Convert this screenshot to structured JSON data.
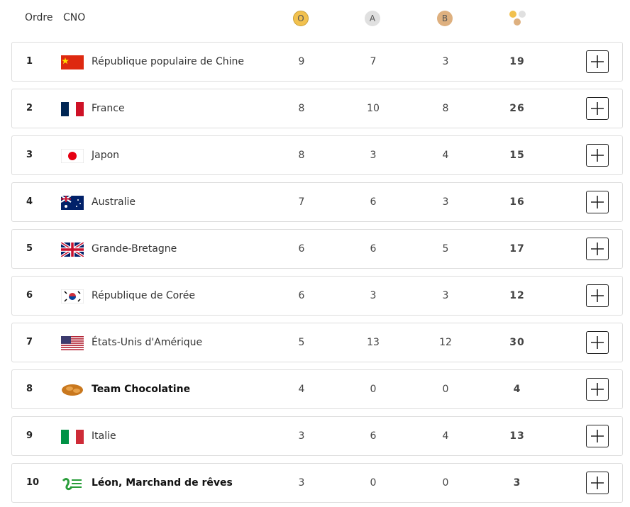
{
  "header": {
    "rank": "Ordre",
    "country": "CNO",
    "gold": "O",
    "silver": "A",
    "bronze": "B"
  },
  "table": {
    "rows": [
      [
        "1",
        "République populaire de Chine",
        9,
        7,
        3,
        19
      ],
      [
        "2",
        "France",
        8,
        10,
        8,
        26
      ],
      [
        "3",
        "Japon",
        8,
        3,
        4,
        15
      ],
      [
        "4",
        "Australie",
        7,
        6,
        3,
        16
      ],
      [
        "5",
        "Grande-Bretagne",
        6,
        6,
        5,
        17
      ],
      [
        "6",
        "République de Corée",
        6,
        3,
        3,
        12
      ],
      [
        "7",
        "États-Unis d'Amérique",
        5,
        13,
        12,
        30
      ],
      [
        "8",
        "Team Chocolatine",
        4,
        0,
        0,
        4
      ],
      [
        "9",
        "Italie",
        3,
        6,
        4,
        13
      ],
      [
        "10",
        "Léon, Marchand de rêves",
        3,
        0,
        0,
        3
      ]
    ]
  }
}
